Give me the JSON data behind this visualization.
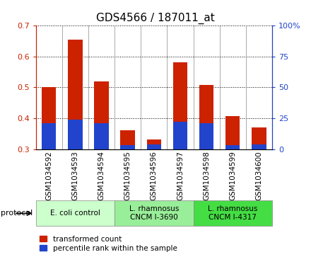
{
  "title": "GDS4566 / 187011_at",
  "samples": [
    "GSM1034592",
    "GSM1034593",
    "GSM1034594",
    "GSM1034595",
    "GSM1034596",
    "GSM1034597",
    "GSM1034598",
    "GSM1034599",
    "GSM1034600"
  ],
  "transformed_count": [
    0.5,
    0.655,
    0.52,
    0.36,
    0.332,
    0.581,
    0.507,
    0.407,
    0.37
  ],
  "percentile_rank": [
    21,
    24,
    21,
    3,
    4,
    22,
    21,
    3,
    4
  ],
  "bar_bottom": 0.3,
  "ylim_left": [
    0.3,
    0.7
  ],
  "ylim_right": [
    0,
    100
  ],
  "yticks_left": [
    0.3,
    0.4,
    0.5,
    0.6,
    0.7
  ],
  "yticks_right": [
    0,
    25,
    50,
    75,
    100
  ],
  "ytick_labels_right": [
    "0",
    "25",
    "50",
    "75",
    "100%"
  ],
  "protocols": [
    {
      "label": "E. coli control",
      "start": 0,
      "end": 3,
      "color": "#ccffcc"
    },
    {
      "label": "L. rhamnosus\nCNCM I-3690",
      "start": 3,
      "end": 6,
      "color": "#99ee99"
    },
    {
      "label": "L. rhamnosus\nCNCM I-4317",
      "start": 6,
      "end": 9,
      "color": "#44dd44"
    }
  ],
  "red_color": "#cc2200",
  "blue_color": "#2244cc",
  "bar_width": 0.55,
  "bg_color": "#ffffff",
  "plot_bg": "#ffffff",
  "title_fontsize": 11,
  "tick_fontsize": 8,
  "label_fontsize": 8
}
